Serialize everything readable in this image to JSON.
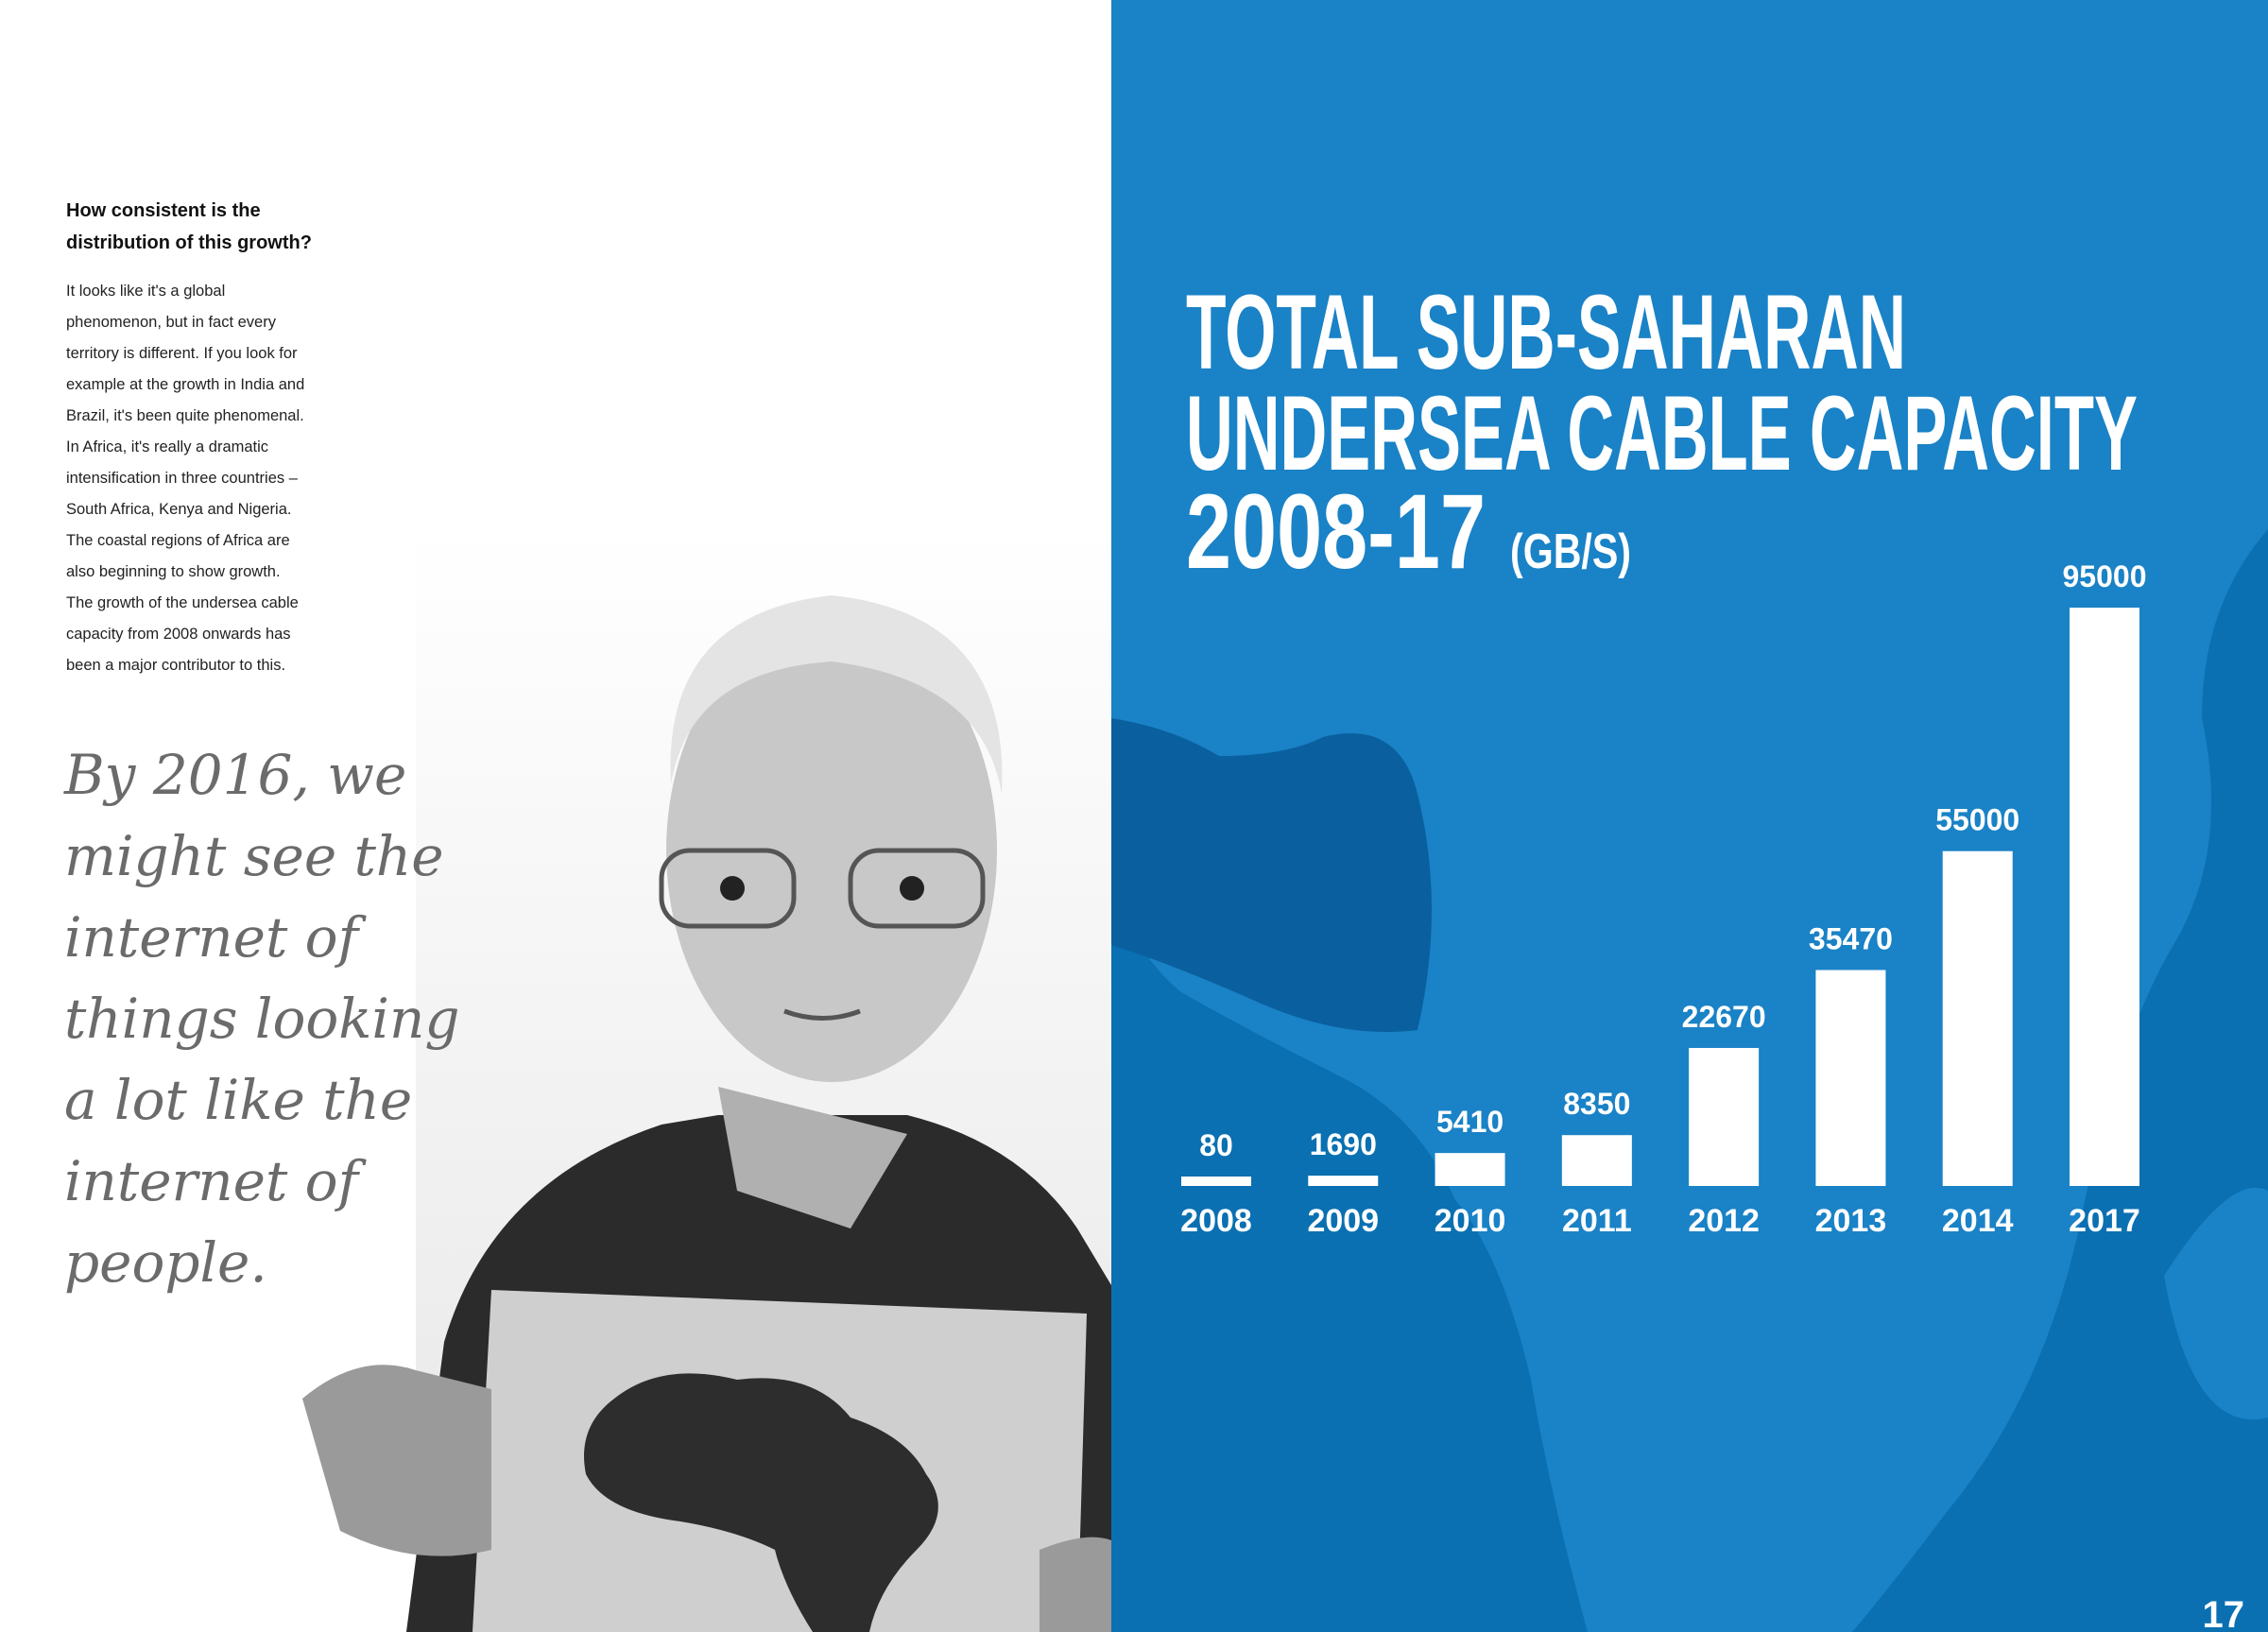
{
  "left_page": {
    "heading": [
      "How consistent is the",
      "distribution of this growth?"
    ],
    "body": [
      "It looks like it's a global",
      "phenomenon, but in fact every",
      "territory is different. If you look for",
      "example at the growth in India and",
      "Brazil, it's been quite phenomenal.",
      "In Africa, it's really a dramatic",
      "intensification in three countries –",
      "South Africa, Kenya and Nigeria.",
      "The coastal regions of Africa are",
      "also beginning to show growth.",
      "The growth of the undersea cable",
      "capacity from 2008 onwards has",
      "been a major contributor to this."
    ],
    "quote": [
      "By 2016, we",
      "might see the",
      "internet of",
      "things looking",
      "a lot like the",
      "internet of",
      "people."
    ]
  },
  "chart_data": {
    "type": "bar",
    "title": [
      "TOTAL SUB-SAHARAN",
      "UNDERSEA CABLE CAPACITY",
      "2008-17"
    ],
    "unit": "(GB/S)",
    "categories": [
      "2008",
      "2009",
      "2010",
      "2011",
      "2012",
      "2013",
      "2014",
      "2017"
    ],
    "values": [
      80,
      1690,
      5410,
      8350,
      22670,
      35470,
      55000,
      95000
    ],
    "color": "#ffffff"
  },
  "page_number": "17"
}
